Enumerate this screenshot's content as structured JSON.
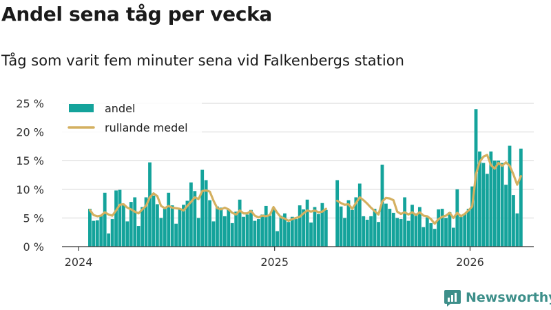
{
  "header": {
    "title": "Andel sena tåg per vecka",
    "subtitle": "Tåg som varit fem minuter sena vid Falkenbergs station"
  },
  "brand": {
    "name": "Newsworthy",
    "color": "#3d8f8a"
  },
  "colors": {
    "bars": "#14a39b",
    "line": "#d4b060",
    "grid": "#d6d6d6",
    "axis": "#333333"
  },
  "chart_data": {
    "type": "bar",
    "xlabel": "",
    "ylabel": "",
    "grid": true,
    "legend_position": "top-left",
    "x_tick_labels": [
      "2024",
      "2025",
      "2026"
    ],
    "y_tick_labels": [
      "0 %",
      "5 %",
      "10 %",
      "15 %",
      "20 %",
      "25 %"
    ],
    "ylim": [
      0,
      25
    ],
    "xlim": [
      "2023-12-01",
      "2026-04-30"
    ],
    "series": [
      {
        "name": "andel",
        "kind": "bar",
        "points": [
          [
            "2024-01-22",
            6.6
          ],
          [
            "2024-01-29",
            4.5
          ],
          [
            "2024-02-05",
            4.6
          ],
          [
            "2024-02-12",
            5.5
          ],
          [
            "2024-02-19",
            9.4
          ],
          [
            "2024-02-26",
            2.3
          ],
          [
            "2024-03-04",
            4.8
          ],
          [
            "2024-03-11",
            9.8
          ],
          [
            "2024-03-18",
            9.9
          ],
          [
            "2024-03-25",
            7.3
          ],
          [
            "2024-04-01",
            4.4
          ],
          [
            "2024-04-08",
            7.8
          ],
          [
            "2024-04-15",
            8.6
          ],
          [
            "2024-04-22",
            3.6
          ],
          [
            "2024-04-29",
            6.9
          ],
          [
            "2024-05-06",
            8.6
          ],
          [
            "2024-05-13",
            14.7
          ],
          [
            "2024-05-20",
            8.9
          ],
          [
            "2024-05-27",
            7.4
          ],
          [
            "2024-06-03",
            5.0
          ],
          [
            "2024-06-10",
            6.6
          ],
          [
            "2024-06-17",
            9.4
          ],
          [
            "2024-06-24",
            7.2
          ],
          [
            "2024-07-01",
            4.0
          ],
          [
            "2024-07-08",
            6.6
          ],
          [
            "2024-07-15",
            7.3
          ],
          [
            "2024-07-22",
            8.0
          ],
          [
            "2024-07-29",
            11.2
          ],
          [
            "2024-08-05",
            9.7
          ],
          [
            "2024-08-12",
            5.0
          ],
          [
            "2024-08-19",
            13.4
          ],
          [
            "2024-08-26",
            11.6
          ],
          [
            "2024-09-02",
            8.1
          ],
          [
            "2024-09-09",
            4.4
          ],
          [
            "2024-09-16",
            7.0
          ],
          [
            "2024-09-23",
            6.8
          ],
          [
            "2024-09-30",
            5.3
          ],
          [
            "2024-10-07",
            6.5
          ],
          [
            "2024-10-14",
            4.1
          ],
          [
            "2024-10-21",
            6.1
          ],
          [
            "2024-10-28",
            8.2
          ],
          [
            "2024-11-04",
            5.2
          ],
          [
            "2024-11-11",
            5.6
          ],
          [
            "2024-11-18",
            6.4
          ],
          [
            "2024-11-25",
            4.5
          ],
          [
            "2024-12-02",
            4.8
          ],
          [
            "2024-12-09",
            5.6
          ],
          [
            "2024-12-16",
            7.1
          ],
          [
            "2024-12-23",
            5.4
          ],
          [
            "2024-12-30",
            6.8
          ],
          [
            "2025-01-06",
            2.7
          ],
          [
            "2025-01-13",
            5.4
          ],
          [
            "2025-01-20",
            5.8
          ],
          [
            "2025-01-27",
            4.3
          ],
          [
            "2025-02-03",
            5.2
          ],
          [
            "2025-02-10",
            4.8
          ],
          [
            "2025-02-17",
            7.2
          ],
          [
            "2025-02-24",
            6.5
          ],
          [
            "2025-03-03",
            8.2
          ],
          [
            "2025-03-10",
            4.2
          ],
          [
            "2025-03-17",
            6.9
          ],
          [
            "2025-03-24",
            5.7
          ],
          [
            "2025-03-31",
            7.6
          ],
          [
            "2025-04-07",
            6.4
          ],
          [
            "2025-04-28",
            11.6
          ],
          [
            "2025-05-05",
            7.0
          ],
          [
            "2025-05-12",
            5.0
          ],
          [
            "2025-05-19",
            8.1
          ],
          [
            "2025-05-26",
            6.4
          ],
          [
            "2025-06-02",
            8.6
          ],
          [
            "2025-06-09",
            11.0
          ],
          [
            "2025-06-16",
            5.3
          ],
          [
            "2025-06-23",
            4.7
          ],
          [
            "2025-06-30",
            5.3
          ],
          [
            "2025-07-07",
            6.6
          ],
          [
            "2025-07-14",
            4.3
          ],
          [
            "2025-07-21",
            14.3
          ],
          [
            "2025-07-28",
            7.5
          ],
          [
            "2025-08-04",
            6.6
          ],
          [
            "2025-08-11",
            5.9
          ],
          [
            "2025-08-18",
            5.0
          ],
          [
            "2025-08-25",
            4.8
          ],
          [
            "2025-09-01",
            8.6
          ],
          [
            "2025-09-08",
            4.5
          ],
          [
            "2025-09-15",
            7.3
          ],
          [
            "2025-09-22",
            5.8
          ],
          [
            "2025-09-29",
            6.9
          ],
          [
            "2025-10-06",
            3.4
          ],
          [
            "2025-10-13",
            5.1
          ],
          [
            "2025-10-20",
            4.1
          ],
          [
            "2025-10-27",
            3.1
          ],
          [
            "2025-11-03",
            6.5
          ],
          [
            "2025-11-10",
            6.6
          ],
          [
            "2025-11-17",
            5.0
          ],
          [
            "2025-11-24",
            6.0
          ],
          [
            "2025-12-01",
            3.3
          ],
          [
            "2025-12-08",
            10.0
          ],
          [
            "2025-12-15",
            5.2
          ],
          [
            "2025-12-22",
            5.7
          ],
          [
            "2025-12-29",
            6.6
          ],
          [
            "2026-01-05",
            10.5
          ],
          [
            "2026-01-12",
            24.0
          ],
          [
            "2026-01-19",
            16.6
          ],
          [
            "2026-01-26",
            14.6
          ],
          [
            "2026-02-02",
            12.7
          ],
          [
            "2026-02-09",
            16.6
          ],
          [
            "2026-02-16",
            15.0
          ],
          [
            "2026-02-23",
            15.0
          ],
          [
            "2026-03-02",
            14.6
          ],
          [
            "2026-03-09",
            10.8
          ],
          [
            "2026-03-16",
            17.6
          ],
          [
            "2026-03-23",
            9.0
          ],
          [
            "2026-03-30",
            5.8
          ],
          [
            "2026-04-06",
            17.1
          ]
        ]
      },
      {
        "name": "rullande medel",
        "kind": "line",
        "segments": [
          [
            [
              "2024-01-22",
              6.4
            ],
            [
              "2024-01-29",
              5.5
            ],
            [
              "2024-02-05",
              5.3
            ],
            [
              "2024-02-12",
              5.4
            ],
            [
              "2024-02-19",
              6.0
            ],
            [
              "2024-02-26",
              5.6
            ],
            [
              "2024-03-04",
              5.4
            ],
            [
              "2024-03-11",
              6.3
            ],
            [
              "2024-03-18",
              7.3
            ],
            [
              "2024-03-25",
              7.4
            ],
            [
              "2024-04-01",
              6.8
            ],
            [
              "2024-04-08",
              6.5
            ],
            [
              "2024-04-15",
              6.1
            ],
            [
              "2024-04-22",
              5.8
            ],
            [
              "2024-04-29",
              6.5
            ],
            [
              "2024-05-06",
              7.1
            ],
            [
              "2024-05-13",
              8.6
            ],
            [
              "2024-05-20",
              9.3
            ],
            [
              "2024-05-27",
              8.8
            ],
            [
              "2024-06-03",
              7.1
            ],
            [
              "2024-06-10",
              6.7
            ],
            [
              "2024-06-17",
              7.1
            ],
            [
              "2024-06-24",
              6.8
            ],
            [
              "2024-07-01",
              6.7
            ],
            [
              "2024-07-08",
              6.6
            ],
            [
              "2024-07-15",
              6.3
            ],
            [
              "2024-07-22",
              7.1
            ],
            [
              "2024-07-29",
              7.8
            ],
            [
              "2024-08-05",
              8.6
            ],
            [
              "2024-08-12",
              8.3
            ],
            [
              "2024-08-19",
              9.7
            ],
            [
              "2024-08-26",
              9.8
            ],
            [
              "2024-09-02",
              9.6
            ],
            [
              "2024-09-09",
              8.0
            ],
            [
              "2024-09-16",
              6.7
            ],
            [
              "2024-09-23",
              6.5
            ],
            [
              "2024-09-30",
              6.8
            ],
            [
              "2024-10-07",
              6.5
            ],
            [
              "2024-10-14",
              5.9
            ],
            [
              "2024-10-21",
              5.6
            ],
            [
              "2024-10-28",
              6.3
            ],
            [
              "2024-11-04",
              5.8
            ],
            [
              "2024-11-11",
              5.8
            ],
            [
              "2024-11-18",
              6.2
            ],
            [
              "2024-11-25",
              5.4
            ],
            [
              "2024-12-02",
              5.1
            ],
            [
              "2024-12-09",
              5.4
            ],
            [
              "2024-12-16",
              5.3
            ],
            [
              "2024-12-23",
              5.5
            ],
            [
              "2024-12-30",
              6.9
            ],
            [
              "2025-01-06",
              5.9
            ],
            [
              "2025-01-13",
              5.1
            ],
            [
              "2025-01-20",
              4.9
            ],
            [
              "2025-01-27",
              4.5
            ],
            [
              "2025-02-03",
              4.8
            ],
            [
              "2025-02-10",
              5.0
            ],
            [
              "2025-02-17",
              5.2
            ],
            [
              "2025-02-24",
              5.8
            ],
            [
              "2025-03-03",
              6.3
            ],
            [
              "2025-03-10",
              6.1
            ],
            [
              "2025-03-17",
              6.3
            ],
            [
              "2025-03-24",
              6.0
            ],
            [
              "2025-03-31",
              6.1
            ],
            [
              "2025-04-07",
              6.6
            ]
          ],
          [
            [
              "2025-04-28",
              8.0
            ],
            [
              "2025-05-05",
              7.6
            ],
            [
              "2025-05-12",
              7.3
            ],
            [
              "2025-05-19",
              7.4
            ],
            [
              "2025-05-26",
              6.6
            ],
            [
              "2025-06-02",
              7.6
            ],
            [
              "2025-06-09",
              8.6
            ],
            [
              "2025-06-16",
              8.1
            ],
            [
              "2025-06-23",
              7.5
            ],
            [
              "2025-06-30",
              6.8
            ],
            [
              "2025-07-07",
              6.2
            ],
            [
              "2025-07-14",
              5.6
            ],
            [
              "2025-07-21",
              7.9
            ],
            [
              "2025-07-28",
              8.5
            ],
            [
              "2025-08-04",
              8.4
            ],
            [
              "2025-08-11",
              8.1
            ],
            [
              "2025-08-18",
              6.1
            ],
            [
              "2025-08-25",
              5.7
            ],
            [
              "2025-09-01",
              6.0
            ],
            [
              "2025-09-08",
              5.6
            ],
            [
              "2025-09-15",
              6.0
            ],
            [
              "2025-09-22",
              5.5
            ],
            [
              "2025-09-29",
              6.0
            ],
            [
              "2025-10-06",
              5.4
            ],
            [
              "2025-10-13",
              5.3
            ],
            [
              "2025-10-20",
              4.8
            ],
            [
              "2025-10-27",
              4.0
            ],
            [
              "2025-11-03",
              4.8
            ],
            [
              "2025-11-10",
              5.2
            ],
            [
              "2025-11-17",
              5.4
            ],
            [
              "2025-11-24",
              5.9
            ],
            [
              "2025-12-01",
              5.0
            ],
            [
              "2025-12-08",
              5.9
            ],
            [
              "2025-12-15",
              5.3
            ],
            [
              "2025-12-22",
              5.7
            ],
            [
              "2025-12-29",
              6.3
            ],
            [
              "2026-01-05",
              7.0
            ],
            [
              "2026-01-12",
              12.6
            ],
            [
              "2026-01-19",
              14.8
            ],
            [
              "2026-01-26",
              15.7
            ],
            [
              "2026-02-02",
              16.0
            ],
            [
              "2026-02-09",
              14.2
            ],
            [
              "2026-02-16",
              13.6
            ],
            [
              "2026-02-23",
              14.6
            ],
            [
              "2026-03-02",
              14.1
            ],
            [
              "2026-03-09",
              14.7
            ],
            [
              "2026-03-16",
              14.1
            ],
            [
              "2026-03-23",
              12.6
            ],
            [
              "2026-03-30",
              10.8
            ],
            [
              "2026-04-06",
              12.3
            ]
          ]
        ]
      }
    ]
  }
}
